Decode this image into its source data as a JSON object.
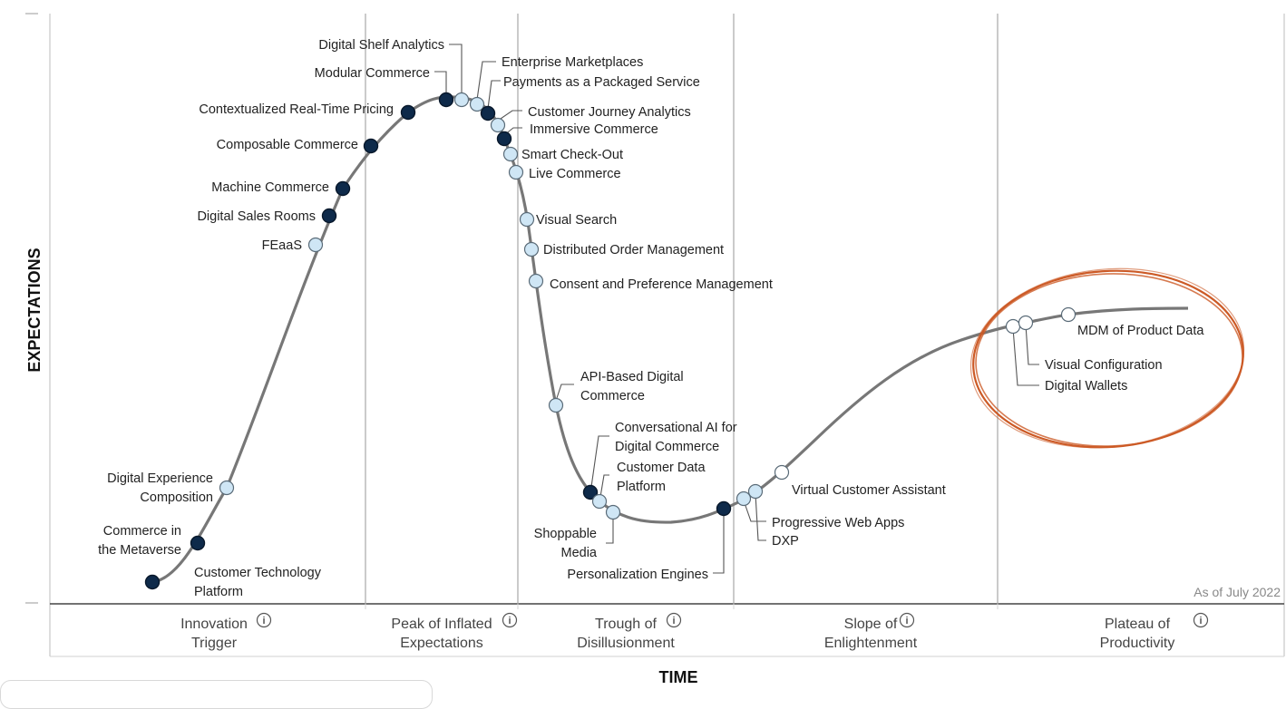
{
  "chart_data": {
    "type": "scatter",
    "title": "",
    "xlabel": "TIME",
    "ylabel": "EXPECTATIONS",
    "as_of": "As of July 2022",
    "grid": true,
    "phases": [
      {
        "line1": "Innovation",
        "line2": "Trigger"
      },
      {
        "line1": "Peak of Inflated",
        "line2": "Expectations"
      },
      {
        "line1": "Trough of",
        "line2": "Disillusionment"
      },
      {
        "line1": "Slope of",
        "line2": "Enlightenment"
      },
      {
        "line1": "Plateau of",
        "line2": "Productivity"
      }
    ],
    "legend": {
      "dark": "#0e2a4a",
      "light": "#cfe6f5",
      "white": "#ffffff",
      "curve": "#777777",
      "highlight": "#cc5a26"
    },
    "points": [
      {
        "label": "Customer Technology Platform",
        "phase": "Innovation Trigger",
        "x": 0.0,
        "y": 0.04,
        "color": "dark"
      },
      {
        "label": "Commerce in the Metaverse",
        "phase": "Innovation Trigger",
        "x": 0.04,
        "y": 0.11,
        "color": "dark"
      },
      {
        "label": "Digital Experience Composition",
        "phase": "Innovation Trigger",
        "x": 0.07,
        "y": 0.2,
        "color": "light"
      },
      {
        "label": "FEaaS",
        "phase": "Innovation Trigger",
        "x": 0.15,
        "y": 0.6,
        "color": "light"
      },
      {
        "label": "Digital Sales Rooms",
        "phase": "Innovation Trigger",
        "x": 0.16,
        "y": 0.66,
        "color": "dark"
      },
      {
        "label": "Machine Commerce",
        "phase": "Innovation Trigger",
        "x": 0.17,
        "y": 0.71,
        "color": "dark"
      },
      {
        "label": "Composable Commerce",
        "phase": "Innovation Trigger",
        "x": 0.2,
        "y": 0.79,
        "color": "dark"
      },
      {
        "label": "Contextualized Real-Time Pricing",
        "phase": "Peak of Inflated Expectations",
        "x": 0.24,
        "y": 0.85,
        "color": "dark"
      },
      {
        "label": "Modular Commerce",
        "phase": "Peak of Inflated Expectations",
        "x": 0.27,
        "y": 0.87,
        "color": "dark"
      },
      {
        "label": "Digital Shelf Analytics",
        "phase": "Peak of Inflated Expectations",
        "x": 0.28,
        "y": 0.87,
        "color": "light"
      },
      {
        "label": "Enterprise Marketplaces",
        "phase": "Peak of Inflated Expectations",
        "x": 0.29,
        "y": 0.86,
        "color": "light"
      },
      {
        "label": "Payments as a Packaged Service",
        "phase": "Peak of Inflated Expectations",
        "x": 0.3,
        "y": 0.85,
        "color": "dark"
      },
      {
        "label": "Customer Journey Analytics",
        "phase": "Peak of Inflated Expectations",
        "x": 0.31,
        "y": 0.82,
        "color": "light"
      },
      {
        "label": "Immersive Commerce",
        "phase": "Peak of Inflated Expectations",
        "x": 0.31,
        "y": 0.8,
        "color": "dark"
      },
      {
        "label": "Smart Check-Out",
        "phase": "Peak of Inflated Expectations",
        "x": 0.32,
        "y": 0.77,
        "color": "light"
      },
      {
        "label": "Live Commerce",
        "phase": "Peak of Inflated Expectations",
        "x": 0.32,
        "y": 0.74,
        "color": "light"
      },
      {
        "label": "Visual Search",
        "phase": "Trough of Disillusionment",
        "x": 0.33,
        "y": 0.66,
        "color": "light"
      },
      {
        "label": "Distributed Order Management",
        "phase": "Trough of Disillusionment",
        "x": 0.33,
        "y": 0.61,
        "color": "light"
      },
      {
        "label": "Consent and Preference Management",
        "phase": "Trough of Disillusionment",
        "x": 0.34,
        "y": 0.55,
        "color": "light"
      },
      {
        "label": "API-Based Digital Commerce",
        "phase": "Trough of Disillusionment",
        "x": 0.36,
        "y": 0.34,
        "color": "light"
      },
      {
        "label": "Conversational AI for Digital Commerce",
        "phase": "Trough of Disillusionment",
        "x": 0.38,
        "y": 0.19,
        "color": "dark"
      },
      {
        "label": "Customer Data Platform",
        "phase": "Trough of Disillusionment",
        "x": 0.39,
        "y": 0.17,
        "color": "light"
      },
      {
        "label": "Shoppable Media",
        "phase": "Trough of Disillusionment",
        "x": 0.4,
        "y": 0.15,
        "color": "light"
      },
      {
        "label": "Personalization Engines",
        "phase": "Trough of Disillusionment",
        "x": 0.48,
        "y": 0.16,
        "color": "dark"
      },
      {
        "label": "Progressive Web Apps",
        "phase": "Slope of Enlightenment",
        "x": 0.5,
        "y": 0.18,
        "color": "light"
      },
      {
        "label": "DXP",
        "phase": "Slope of Enlightenment",
        "x": 0.51,
        "y": 0.19,
        "color": "light"
      },
      {
        "label": "Virtual Customer Assistant",
        "phase": "Slope of Enlightenment",
        "x": 0.53,
        "y": 0.22,
        "color": "white"
      },
      {
        "label": "Digital Wallets",
        "phase": "Plateau of Productivity",
        "x": 0.73,
        "y": 0.47,
        "color": "white"
      },
      {
        "label": "Visual Configuration",
        "phase": "Plateau of Productivity",
        "x": 0.74,
        "y": 0.48,
        "color": "white"
      },
      {
        "label": "MDM of Product Data",
        "phase": "Plateau of Productivity",
        "x": 0.77,
        "y": 0.49,
        "color": "white"
      }
    ]
  }
}
